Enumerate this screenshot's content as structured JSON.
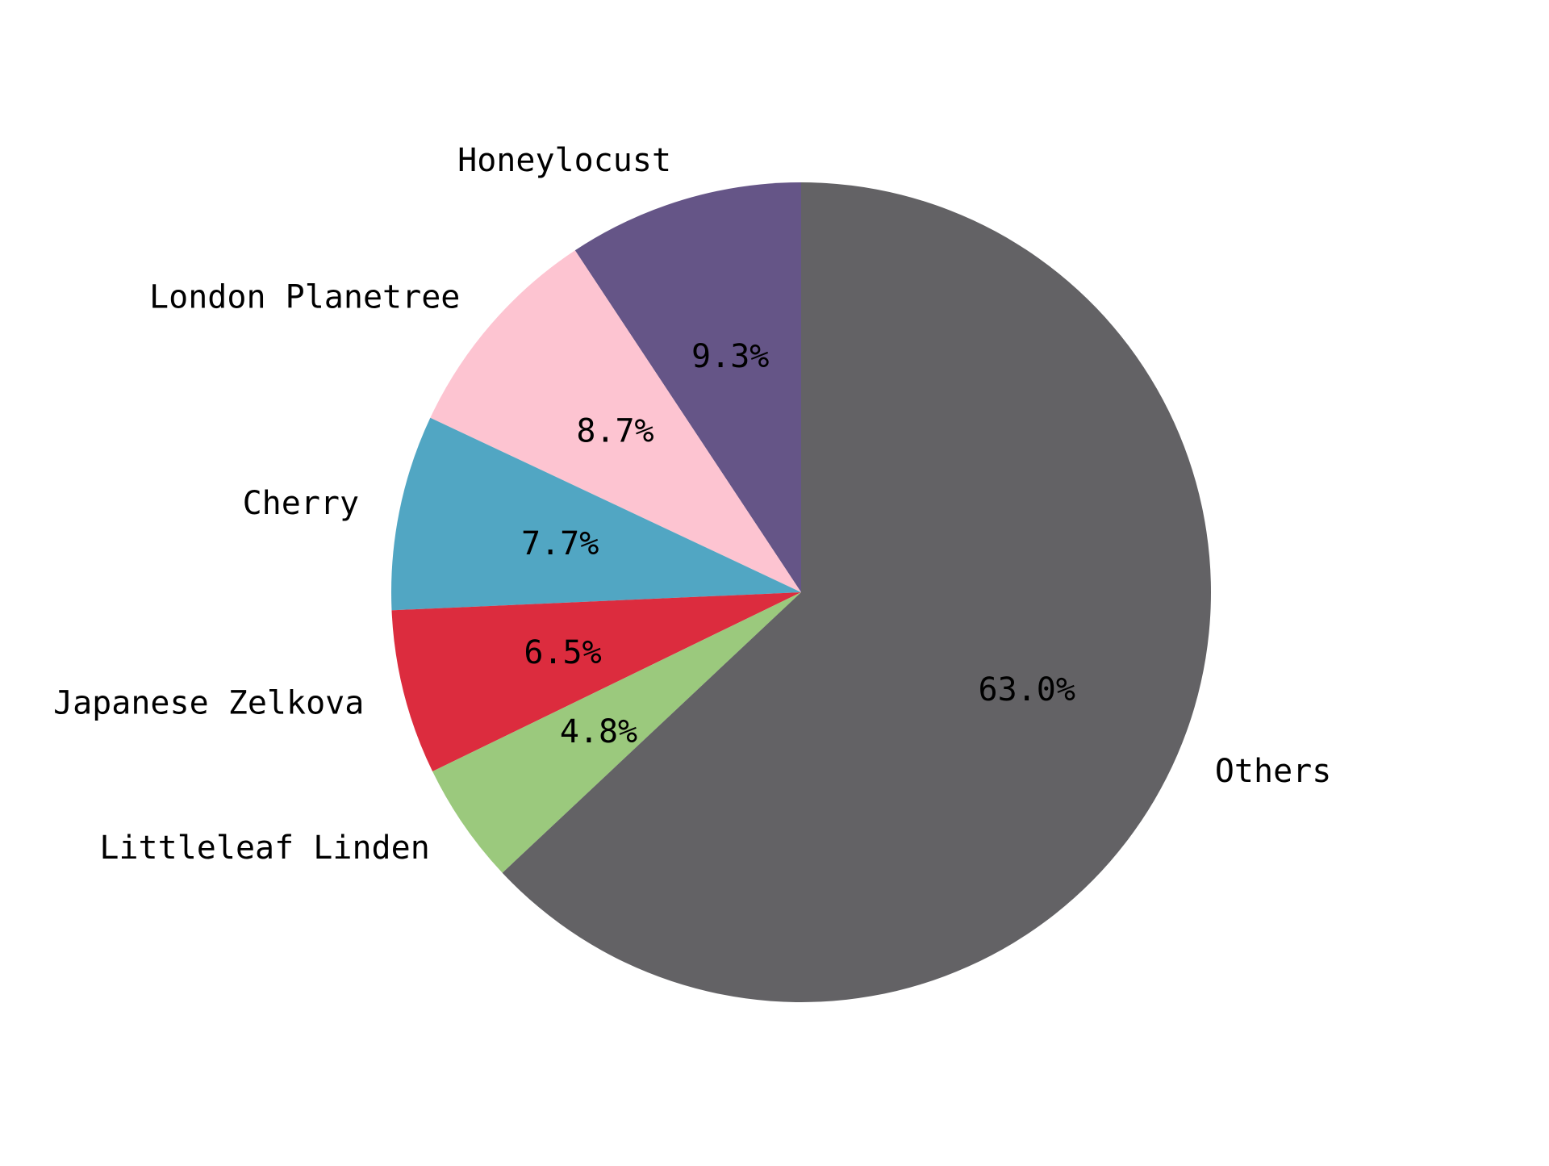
{
  "chart_data": {
    "type": "pie",
    "title": "",
    "start": "top",
    "direction": "counterclockwise",
    "slices": [
      {
        "label": "Honeylocust",
        "value": 9.3,
        "pct_label": "9.3%",
        "color": "#655587"
      },
      {
        "label": "London Planetree",
        "value": 8.7,
        "pct_label": "8.7%",
        "color": "#fdc4d1"
      },
      {
        "label": "Cherry",
        "value": 7.7,
        "pct_label": "7.7%",
        "color": "#51a6c3"
      },
      {
        "label": "Japanese Zelkova",
        "value": 6.5,
        "pct_label": "6.5%",
        "color": "#dc2c3e"
      },
      {
        "label": "Littleleaf Linden",
        "value": 4.8,
        "pct_label": "4.8%",
        "color": "#9bc97d"
      },
      {
        "label": "Others",
        "value": 63.0,
        "pct_label": "63.0%",
        "color": "#636265"
      }
    ]
  }
}
